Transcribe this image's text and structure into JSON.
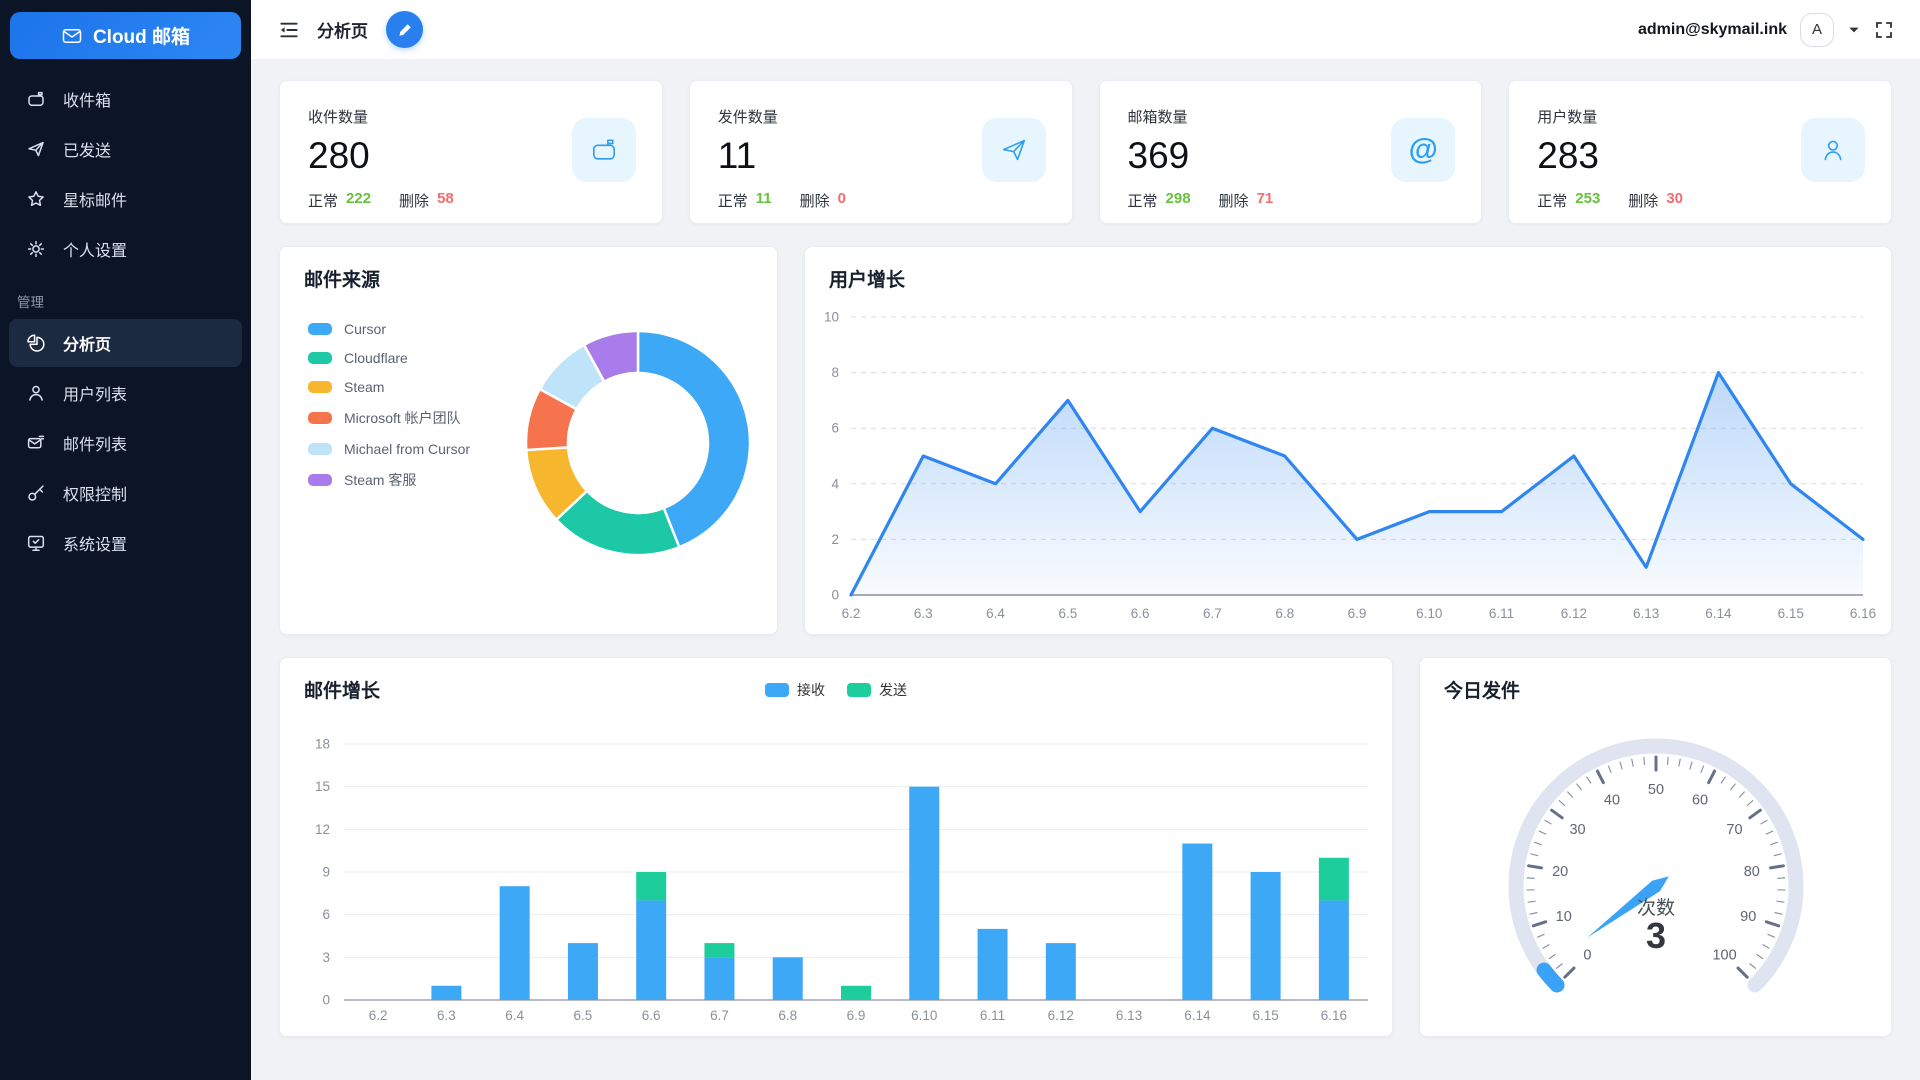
{
  "app": {
    "logo_text": "Cloud 邮箱",
    "page_title": "分析页",
    "user_email": "admin@skymail.ink",
    "avatar_letter": "A"
  },
  "sidebar": {
    "items": [
      {
        "id": "inbox",
        "label": "收件箱",
        "icon": "mailbox-icon"
      },
      {
        "id": "sent",
        "label": "已发送",
        "icon": "paper-plane-icon"
      },
      {
        "id": "starred",
        "label": "星标邮件",
        "icon": "star-icon"
      },
      {
        "id": "settings",
        "label": "个人设置",
        "icon": "gear-icon"
      }
    ],
    "section_label": "管理",
    "admin_items": [
      {
        "id": "analytics",
        "label": "分析页",
        "icon": "pie-icon",
        "active": true
      },
      {
        "id": "users",
        "label": "用户列表",
        "icon": "user-icon"
      },
      {
        "id": "mails",
        "label": "邮件列表",
        "icon": "mail-list-icon"
      },
      {
        "id": "permissions",
        "label": "权限控制",
        "icon": "key-icon"
      },
      {
        "id": "system",
        "label": "系统设置",
        "icon": "monitor-check-icon"
      }
    ]
  },
  "stats": [
    {
      "label": "收件数量",
      "value": "280",
      "normal_label": "正常",
      "normal": "222",
      "deleted_label": "删除",
      "deleted": "58",
      "icon": "mailbox-icon"
    },
    {
      "label": "发件数量",
      "value": "11",
      "normal_label": "正常",
      "normal": "11",
      "deleted_label": "删除",
      "deleted": "0",
      "icon": "paper-plane-icon"
    },
    {
      "label": "邮箱数量",
      "value": "369",
      "normal_label": "正常",
      "normal": "298",
      "deleted_label": "删除",
      "deleted": "71",
      "icon": "at-icon"
    },
    {
      "label": "用户数量",
      "value": "283",
      "normal_label": "正常",
      "normal": "253",
      "deleted_label": "删除",
      "deleted": "30",
      "icon": "person-icon"
    }
  ],
  "colors": {
    "accent": "#2a7fee",
    "success": "#67c23a",
    "danger": "#f56c6c",
    "stat_icon": "#2f9ef2",
    "stat_icon_bg": "#e7f5fe"
  },
  "chart_data": [
    {
      "type": "pie",
      "title": "邮件来源",
      "legend_position": "left",
      "labels": [
        "Cursor",
        "Cloudflare",
        "Steam",
        "Microsoft 帐户团队",
        "Michael from Cursor",
        "Steam 客服"
      ],
      "values": [
        44,
        19,
        11,
        9,
        9,
        8
      ],
      "colors": [
        "#3da8f5",
        "#1cc8a5",
        "#f6b62e",
        "#f5744e",
        "#bfe3f8",
        "#a87cea"
      ],
      "donut": true
    },
    {
      "type": "area",
      "title": "用户增长",
      "x": [
        "6.2",
        "6.3",
        "6.4",
        "6.5",
        "6.6",
        "6.7",
        "6.8",
        "6.9",
        "6.10",
        "6.11",
        "6.12",
        "6.13",
        "6.14",
        "6.15",
        "6.16"
      ],
      "values": [
        0,
        5,
        4,
        7,
        3,
        6,
        5,
        2,
        3,
        3,
        5,
        1,
        8,
        4,
        2
      ],
      "ylim": [
        0,
        10
      ],
      "yticks": [
        0,
        2,
        4,
        6,
        8,
        10
      ],
      "line_color": "#2f86f0",
      "grid": "dashed"
    },
    {
      "type": "bar",
      "title": "邮件增长",
      "stacked": true,
      "categories": [
        "6.2",
        "6.3",
        "6.4",
        "6.5",
        "6.6",
        "6.7",
        "6.8",
        "6.9",
        "6.10",
        "6.11",
        "6.12",
        "6.13",
        "6.14",
        "6.15",
        "6.16"
      ],
      "series": [
        {
          "name": "接收",
          "color": "#3da8f5",
          "values": [
            0,
            1,
            8,
            4,
            7,
            3,
            3,
            0,
            15,
            5,
            4,
            0,
            11,
            9,
            7
          ]
        },
        {
          "name": "发送",
          "color": "#1ecd9c",
          "values": [
            0,
            0,
            0,
            0,
            2,
            1,
            0,
            1,
            0,
            0,
            0,
            0,
            0,
            0,
            3
          ]
        }
      ],
      "ylim": [
        0,
        18
      ],
      "yticks": [
        0,
        3,
        6,
        9,
        12,
        15,
        18
      ],
      "legend_position": "top"
    },
    {
      "type": "gauge",
      "title": "今日发件",
      "label": "次数",
      "value": 3,
      "min": 0,
      "max": 100,
      "tick_labels": [
        0,
        10,
        20,
        30,
        40,
        50,
        60,
        70,
        80,
        90,
        100
      ],
      "needle_color": "#3aa2f7",
      "track_color": "#dfe4f0"
    }
  ]
}
